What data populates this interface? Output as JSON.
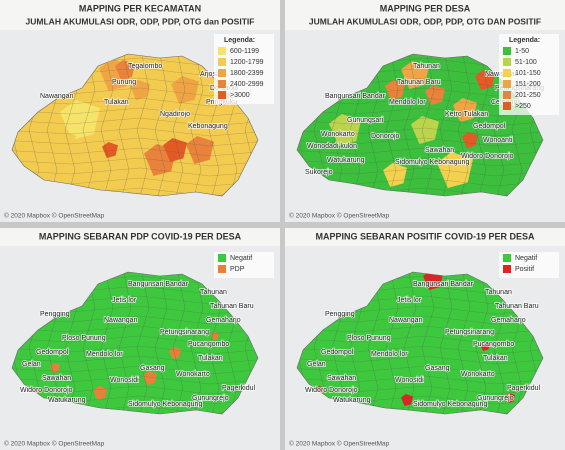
{
  "panels": [
    {
      "title": "MAPPING PER KECAMATAN",
      "subtitle": "JUMLAH AKUMULASI ODR, ODP, PDP, OTG dan POSITIF",
      "legend": {
        "title": "Legenda:",
        "items": [
          {
            "label": "600-1199",
            "color": "#f6e46a"
          },
          {
            "label": "1200-1799",
            "color": "#f3cb4f"
          },
          {
            "label": "1800-2399",
            "color": "#f0a545"
          },
          {
            "label": "2400-2999",
            "color": "#e9823a"
          },
          {
            "label": ">3000",
            "color": "#e45a25"
          }
        ]
      },
      "labels": [
        "Nawangan",
        "Tegalombo",
        "Punung",
        "Arjosari",
        "Donorojo",
        "Pringkuku",
        "Tulakan",
        "Ngadirojo",
        "Kebonagung"
      ],
      "attribution": "© 2020 Mapbox © OpenStreetMap"
    },
    {
      "title": "MAPPING PER DESA",
      "subtitle": "JUMLAH AKUMULASI ODR, ODP, PDP, OTG DAN POSITIF",
      "legend": {
        "title": "Legenda:",
        "items": [
          {
            "label": "1-50",
            "color": "#3cbf3c"
          },
          {
            "label": "51-100",
            "color": "#bcd34c"
          },
          {
            "label": "101-150",
            "color": "#f3d04e"
          },
          {
            "label": "151-200",
            "color": "#f0a545"
          },
          {
            "label": "201-250",
            "color": "#e9823a"
          },
          {
            "label": ">250",
            "color": "#e45a25"
          }
        ]
      },
      "labels": [
        "Bangunsari Bandar",
        "Tahunan",
        "Tahunan Baru",
        "Nawangan",
        "Petungsinarang",
        "Cemeng",
        "Mendolo lor",
        "Ketro Tulakan",
        "Gedompol",
        "Gunungsari",
        "Wonokarto",
        "Donorojo",
        "Wonoanti",
        "Wonodadi kulon",
        "Sawahan",
        "Widoro Donorojo",
        "Watukarung",
        "Sidomulyo Kebonagung",
        "Sukorejo"
      ],
      "attribution": "© 2020 Mapbox © OpenStreetMap"
    },
    {
      "title": "MAPPING SEBARAN PDP COVID-19 PER DESA",
      "legend": {
        "items": [
          {
            "label": "Negatif",
            "color": "#3ec83e"
          },
          {
            "label": "PDP",
            "color": "#ea7f3a"
          }
        ]
      },
      "labels": [
        "Pengging",
        "Bangunsari Bandar",
        "Jetis lor",
        "Tahunan",
        "Tahunan Baru",
        "Gemaharjo",
        "Nawangan",
        "Petungsinarang",
        "Pucangombo",
        "Ploso Punung",
        "Gedompol",
        "Mendolo lor",
        "Tulakan",
        "Gelan",
        "Gasang",
        "Wonokarto",
        "Sawahan",
        "Wonosidi",
        "Widoro Donorojo",
        "Watukarung",
        "Gunungrejo",
        "Sidomulyo Kebonagung",
        "Pagerkidul"
      ],
      "attribution": "© 2020 Mapbox © OpenStreetMap"
    },
    {
      "title": "MAPPING SEBARAN POSITIF COVID-19 PER DESA",
      "legend": {
        "items": [
          {
            "label": "Negatif",
            "color": "#3ec83e"
          },
          {
            "label": "Positif",
            "color": "#e02424"
          }
        ]
      },
      "labels": [
        "Pengging",
        "Bangunsari Bandar",
        "Jetis lor",
        "Tahunan",
        "Tahunan Baru",
        "Gemaharjo",
        "Nawangan",
        "Petungsinarang",
        "Pucangombo",
        "Ploso Punung",
        "Gedompol",
        "Mendolo lor",
        "Tulakan",
        "Gelan",
        "Gasang",
        "Wonokarto",
        "Sawahan",
        "Wonosidi",
        "Widoro Donorojo",
        "Watukarung",
        "Gunungrejo",
        "Sidomulyo Kebonagung",
        "Pagerkidul"
      ],
      "attribution": "© 2020 Mapbox © OpenStreetMap"
    }
  ]
}
